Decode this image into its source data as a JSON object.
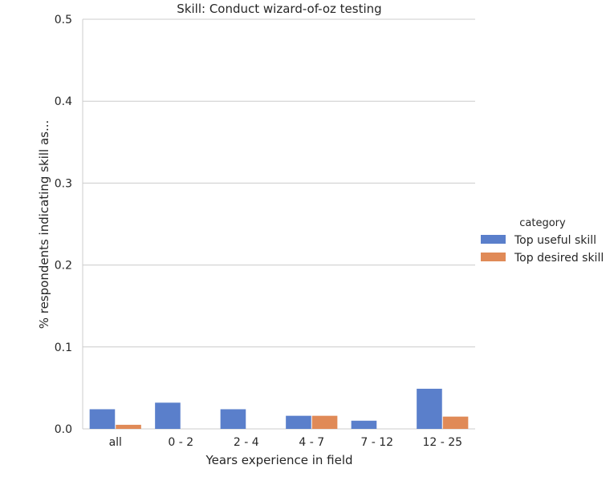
{
  "chart_data": {
    "type": "bar",
    "title": "Skill: Conduct wizard-of-oz testing",
    "xlabel": "Years experience in field",
    "ylabel": "% respondents indicating skill as...",
    "categories": [
      "all",
      "0 - 2",
      "2 - 4",
      "4 - 7",
      "7 - 12",
      "12 - 25"
    ],
    "series": [
      {
        "name": "Top useful skill",
        "color": "#5a7fcb",
        "values": [
          0.024,
          0.032,
          0.024,
          0.016,
          0.01,
          0.049
        ]
      },
      {
        "name": "Top desired skill",
        "color": "#e08a57",
        "values": [
          0.005,
          0.0,
          0.0,
          0.016,
          0.0,
          0.015
        ]
      }
    ],
    "ylim": [
      0,
      0.5
    ],
    "yticks": [
      "0.0",
      "0.1",
      "0.2",
      "0.3",
      "0.4",
      "0.5"
    ],
    "grid": true,
    "legend": {
      "title": "category",
      "placement": "right"
    }
  }
}
